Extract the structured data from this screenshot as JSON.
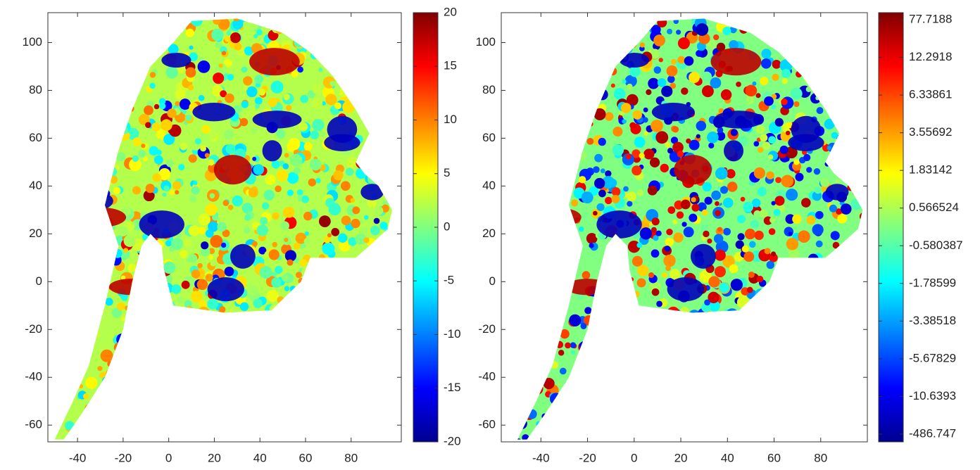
{
  "chart_data": [
    {
      "type": "heatmap",
      "xlim": [
        -53,
        102
      ],
      "ylim": [
        -67,
        112.5
      ],
      "xticks": [
        -40,
        -20,
        0,
        20,
        40,
        60,
        80
      ],
      "yticks": [
        -60,
        -40,
        -20,
        0,
        20,
        40,
        60,
        80,
        100
      ],
      "colorbar": {
        "scale": "linear",
        "lim": [
          -20,
          20
        ],
        "ticks": [
          -20,
          -15,
          -10,
          -5,
          0,
          5,
          10,
          15,
          20
        ]
      },
      "colormap": "jet"
    },
    {
      "type": "heatmap",
      "xlim": [
        -57,
        100
      ],
      "ylim": [
        -67,
        112.5
      ],
      "xticks": [
        -40,
        -20,
        0,
        20,
        40,
        60,
        80
      ],
      "yticks": [
        -60,
        -40,
        -20,
        0,
        20,
        40,
        60,
        80,
        100
      ],
      "colorbar": {
        "scale": "quantile",
        "ticks": [
          -486.747,
          -10.6393,
          -5.67829,
          -3.38518,
          -1.78599,
          -0.580387,
          0.566524,
          1.83142,
          3.55692,
          6.33861,
          12.2918,
          77.7188
        ]
      },
      "colormap": "jet"
    }
  ]
}
